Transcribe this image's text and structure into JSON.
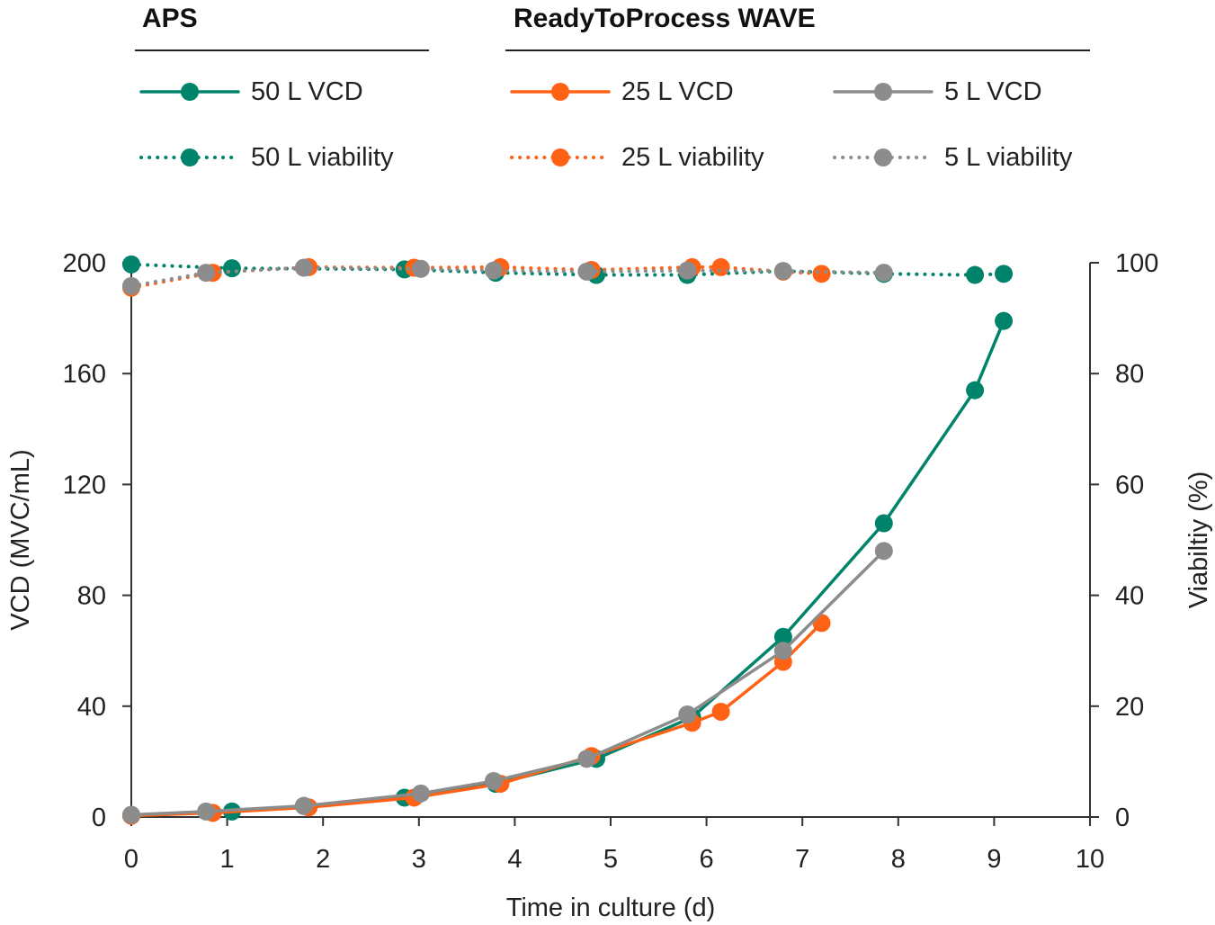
{
  "legend": {
    "groups": [
      {
        "title": "APS",
        "items": [
          {
            "label": "50 L VCD",
            "color": "#00836b",
            "style": "solid"
          },
          {
            "label": "50 L viability",
            "color": "#00836b",
            "style": "dotted"
          }
        ]
      },
      {
        "title": "ReadyToProcess WAVE",
        "items": [
          {
            "label": "25 L VCD",
            "color": "#ff6215",
            "style": "solid"
          },
          {
            "label": "5 L VCD",
            "color": "#8c8c8c",
            "style": "solid"
          },
          {
            "label": "25 L viability",
            "color": "#ff6215",
            "style": "dotted"
          },
          {
            "label": "5 L viability",
            "color": "#8c8c8c",
            "style": "dotted"
          }
        ]
      }
    ]
  },
  "chart_data": {
    "type": "line",
    "xlabel": "Time in culture (d)",
    "ylabel": "VCD (MVC/mL)",
    "y2label": "Viabiltiy (%)",
    "xlim": [
      0,
      10
    ],
    "ylim": [
      0,
      200
    ],
    "y2lim": [
      0,
      100
    ],
    "xticks": [
      "0",
      "1",
      "2",
      "3",
      "4",
      "5",
      "6",
      "7",
      "8",
      "9",
      "10"
    ],
    "yticks": [
      "0",
      "40",
      "80",
      "120",
      "160",
      "200"
    ],
    "y2ticks": [
      "0",
      "20",
      "40",
      "60",
      "80",
      "100"
    ],
    "grid": false,
    "series": [
      {
        "name": "50 L viability",
        "axis": "y2",
        "style": "dotted",
        "color": "#00836b",
        "x": [
          0,
          1.05,
          2.85,
          3.8,
          4.85,
          5.8,
          6.8,
          7.85,
          8.8,
          9.1
        ],
        "y": [
          99.7,
          99,
          98.8,
          98.2,
          97.8,
          97.8,
          98.5,
          98,
          97.8,
          98
        ]
      },
      {
        "name": "25 L viability",
        "axis": "y2",
        "style": "dotted",
        "color": "#ff6215",
        "x": [
          0,
          0.85,
          1.85,
          2.95,
          3.85,
          4.8,
          5.85,
          6.15,
          6.8,
          7.2
        ],
        "y": [
          95.5,
          98.2,
          99.2,
          99.1,
          99.2,
          98.7,
          99.2,
          99.2,
          98.4,
          98
        ]
      },
      {
        "name": "5 L viability",
        "axis": "y2",
        "style": "dotted",
        "color": "#8c8c8c",
        "x": [
          0,
          0.78,
          1.8,
          3.02,
          3.78,
          4.75,
          5.8,
          6.8,
          7.85
        ],
        "y": [
          95.8,
          98.2,
          99.1,
          98.9,
          98.6,
          98.4,
          98.6,
          98.5,
          98.2
        ]
      },
      {
        "name": "50 L VCD",
        "axis": "y",
        "style": "solid",
        "color": "#00836b",
        "x": [
          0,
          1.05,
          1.8,
          2.85,
          3.8,
          4.85,
          5.85,
          6.8,
          7.85,
          8.8,
          9.1
        ],
        "y": [
          0.5,
          2,
          4,
          7,
          12,
          21,
          36,
          65,
          106,
          154,
          179
        ]
      },
      {
        "name": "25 L VCD",
        "axis": "y",
        "style": "solid",
        "color": "#ff6215",
        "x": [
          0,
          0.85,
          1.85,
          2.95,
          3.85,
          4.8,
          5.85,
          6.15,
          6.8,
          7.2
        ],
        "y": [
          0.5,
          1.5,
          3.5,
          7,
          12,
          22,
          34,
          38,
          56,
          70
        ]
      },
      {
        "name": "5 L VCD",
        "axis": "y",
        "style": "solid",
        "color": "#8c8c8c",
        "x": [
          0,
          0.78,
          1.8,
          3.02,
          3.78,
          4.75,
          5.8,
          6.8,
          7.85
        ],
        "y": [
          0.8,
          2,
          4,
          8.5,
          13,
          21,
          37,
          60,
          96
        ]
      }
    ]
  }
}
